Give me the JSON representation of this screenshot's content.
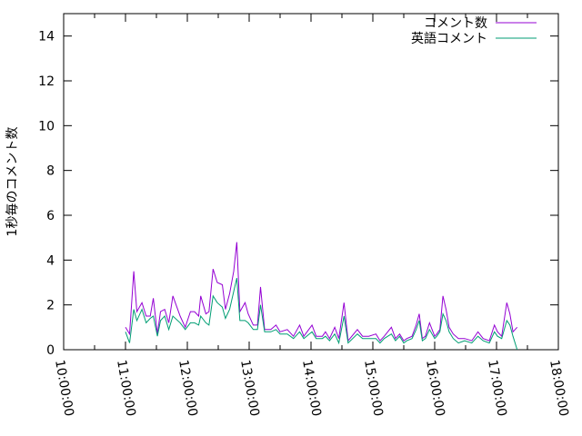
{
  "chart_data": {
    "type": "line",
    "title": "",
    "xlabel": "",
    "ylabel": "1秒毎のコメント数",
    "xlim": [
      "10:00:00",
      "18:00:00"
    ],
    "ylim": [
      0,
      15
    ],
    "x_ticks": [
      "10:00:00",
      "11:00:00",
      "12:00:00",
      "13:00:00",
      "14:00:00",
      "15:00:00",
      "16:00:00",
      "17:00:00",
      "18:00:00"
    ],
    "y_ticks": [
      "0",
      "2",
      "4",
      "6",
      "8",
      "10",
      "12",
      "14"
    ],
    "grid": false,
    "legend_position": "top-right",
    "x": [
      "11:00",
      "11:04",
      "11:08",
      "11:11",
      "11:16",
      "11:20",
      "11:24",
      "11:27",
      "11:31",
      "11:34",
      "11:38",
      "11:42",
      "11:46",
      "11:53",
      "11:58",
      "12:03",
      "12:07",
      "12:11",
      "12:13",
      "12:18",
      "12:21",
      "12:25",
      "12:29",
      "12:34",
      "12:37",
      "12:41",
      "12:45",
      "12:48",
      "12:51",
      "12:56",
      "12:59",
      "13:04",
      "13:08",
      "13:11",
      "13:15",
      "13:21",
      "13:26",
      "13:30",
      "13:37",
      "13:43",
      "13:49",
      "13:53",
      "14:01",
      "14:05",
      "14:11",
      "14:14",
      "14:18",
      "14:23",
      "14:27",
      "14:32",
      "14:36",
      "14:45",
      "14:50",
      "14:56",
      "15:03",
      "15:07",
      "15:11",
      "15:18",
      "15:22",
      "15:26",
      "15:30",
      "15:33",
      "15:38",
      "15:42",
      "15:45",
      "15:48",
      "15:51",
      "15:55",
      "16:00",
      "16:02",
      "16:05",
      "16:08",
      "16:11",
      "16:14",
      "16:18",
      "16:23",
      "16:29",
      "16:36",
      "16:42",
      "16:47",
      "16:53",
      "16:58",
      "17:01",
      "17:05",
      "17:10",
      "17:13",
      "17:16",
      "17:20"
    ],
    "series": [
      {
        "name": "コメント数",
        "color": "#9400d3",
        "values": [
          1.0,
          0.7,
          3.5,
          1.7,
          2.1,
          1.5,
          1.5,
          2.3,
          0.7,
          1.7,
          1.8,
          1.2,
          2.4,
          1.5,
          1.0,
          1.7,
          1.7,
          1.5,
          2.4,
          1.6,
          1.7,
          3.6,
          3.0,
          2.9,
          1.8,
          2.5,
          3.5,
          4.8,
          1.7,
          2.1,
          1.6,
          1.1,
          1.1,
          2.8,
          0.9,
          0.9,
          1.1,
          0.8,
          0.9,
          0.6,
          1.1,
          0.6,
          1.1,
          0.6,
          0.6,
          0.8,
          0.5,
          1.0,
          0.5,
          2.1,
          0.4,
          0.9,
          0.6,
          0.6,
          0.7,
          0.4,
          0.6,
          1.0,
          0.5,
          0.7,
          0.4,
          0.5,
          0.6,
          1.1,
          1.6,
          0.5,
          0.6,
          1.2,
          0.6,
          0.7,
          0.9,
          2.4,
          1.8,
          1.0,
          0.7,
          0.5,
          0.5,
          0.4,
          0.8,
          0.5,
          0.4,
          1.1,
          0.8,
          0.6,
          2.1,
          1.6,
          0.8,
          1.0
        ]
      },
      {
        "name": "英語コメント",
        "color": "#009e73",
        "values": [
          0.8,
          0.3,
          1.8,
          1.3,
          1.8,
          1.2,
          1.4,
          1.5,
          0.6,
          1.3,
          1.5,
          0.9,
          1.5,
          1.2,
          0.9,
          1.2,
          1.2,
          1.1,
          1.5,
          1.2,
          1.1,
          2.4,
          2.1,
          1.9,
          1.4,
          1.8,
          2.6,
          3.2,
          1.3,
          1.3,
          1.2,
          0.9,
          0.9,
          2.0,
          0.8,
          0.8,
          0.9,
          0.7,
          0.7,
          0.5,
          0.8,
          0.5,
          0.8,
          0.5,
          0.5,
          0.6,
          0.4,
          0.7,
          0.3,
          1.5,
          0.3,
          0.7,
          0.5,
          0.5,
          0.5,
          0.3,
          0.5,
          0.7,
          0.4,
          0.6,
          0.3,
          0.4,
          0.5,
          0.9,
          1.3,
          0.4,
          0.5,
          0.9,
          0.5,
          0.6,
          0.8,
          1.6,
          1.3,
          0.8,
          0.5,
          0.3,
          0.4,
          0.3,
          0.6,
          0.4,
          0.3,
          0.8,
          0.6,
          0.5,
          1.3,
          1.1,
          0.6,
          0.0
        ]
      }
    ]
  }
}
